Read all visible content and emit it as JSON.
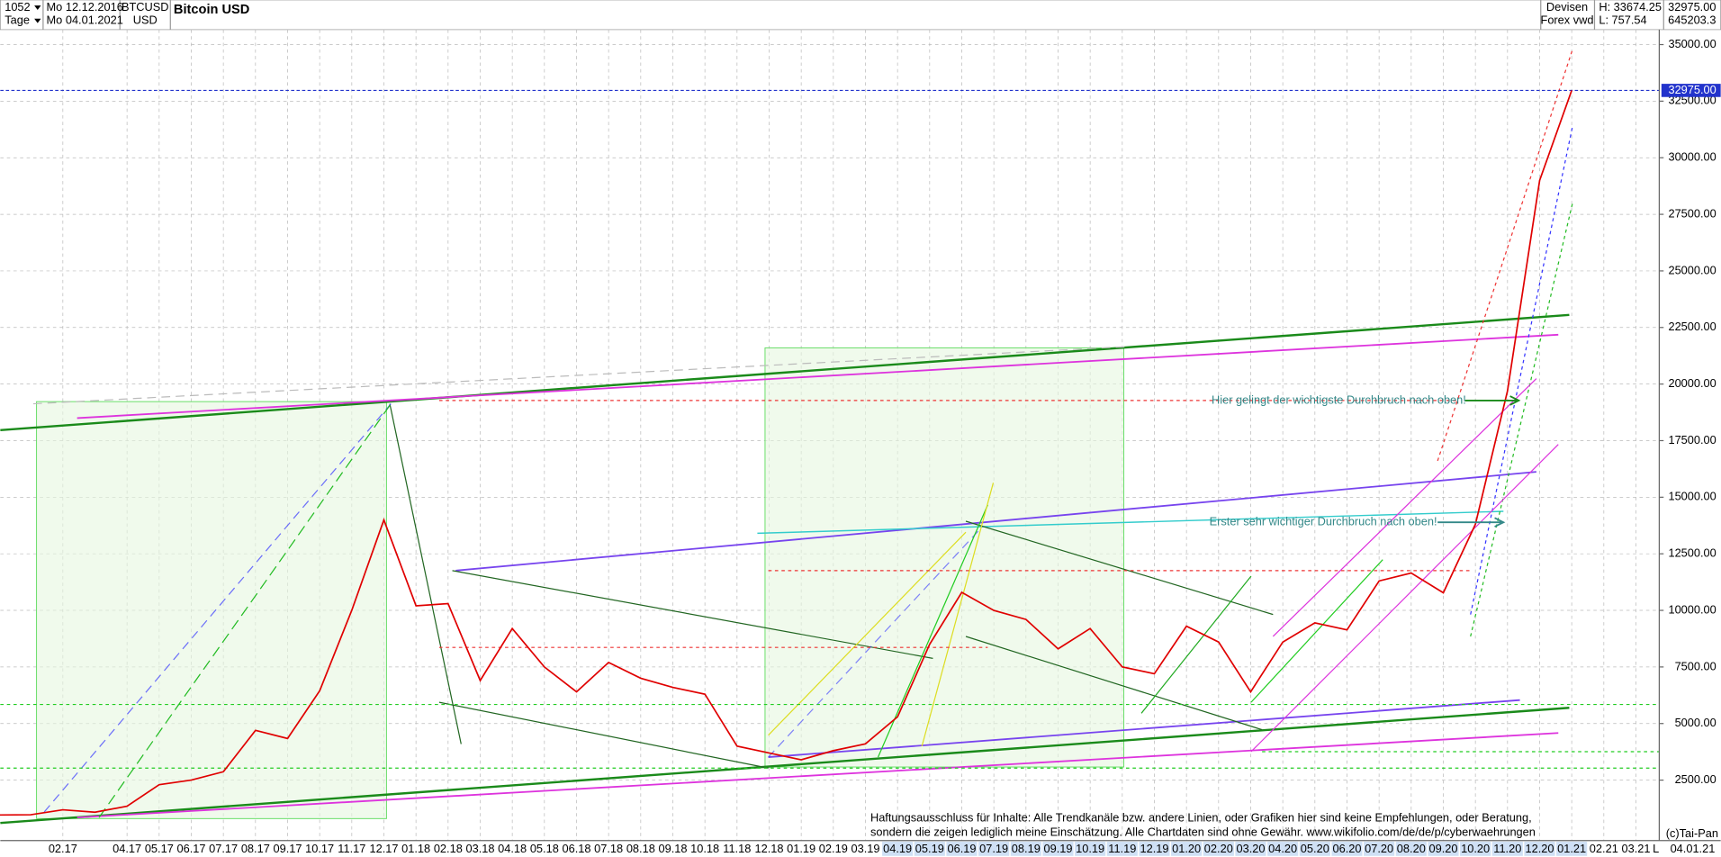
{
  "chart_data": {
    "type": "line",
    "title": "Bitcoin USD",
    "header": {
      "count": "1052",
      "period": "Tage",
      "start": "Mo 12.12.2016",
      "end": "Mo 04.01.2021",
      "symbol": "BTCUSD",
      "currency": "USD",
      "market": "Devisen",
      "source": "Forex vwd",
      "high": "H: 33674.25",
      "low": "L: 757.54",
      "last": "32975.00",
      "volume": "645203.3"
    },
    "current_price": {
      "value": 32975,
      "label": "32975.00"
    },
    "annotations": [
      "Hier gelingt der wichtigste Durchbruch nach oben!",
      "Erster sehr wichtiger Durchbruch nach oben!"
    ],
    "disclaimer": [
      "Haftungsausschluss für Inhalte: Alle Trendkanäle bzw. andere Linien, oder Grafiken hier sind keine Empfehlungen, oder Beratung,",
      "sondern die zeigen lediglich meine  Einschätzung. Alle Chartdaten sind ohne Gewähr.  www.wikifolio.com/de/de/p/cyberwaehrungen"
    ],
    "copyright": "(c)Tai-Pan",
    "footer_date": "04.01.21",
    "footer_scale": "L",
    "xticks": [
      "02.17",
      "04.17",
      "05.17",
      "06.17",
      "07.17",
      "08.17",
      "09.17",
      "10.17",
      "11.17",
      "12.17",
      "01.18",
      "02.18",
      "03.18",
      "04.18",
      "05.18",
      "06.18",
      "07.18",
      "08.18",
      "09.18",
      "10.18",
      "11.18",
      "12.18",
      "01.19",
      "02.19",
      "03.19",
      "04.19",
      "05.19",
      "06.19",
      "07.19",
      "08.19",
      "09.19",
      "10.19",
      "11.19",
      "12.19",
      "01.20",
      "02.20",
      "03.20",
      "04.20",
      "05.20",
      "06.20",
      "07.20",
      "08.20",
      "09.20",
      "10.20",
      "11.20",
      "12.20",
      "01.21",
      "02.21",
      "03.21"
    ],
    "ylim": [
      0,
      36000
    ],
    "yticks": [
      {
        "value": 2500,
        "label": "2500.00"
      },
      {
        "value": 5000,
        "label": "5000.00"
      },
      {
        "value": 7500,
        "label": "7500.00"
      },
      {
        "value": 10000,
        "label": "10000.00"
      },
      {
        "value": 12500,
        "label": "12500.00"
      },
      {
        "value": 15000,
        "label": "15000.00"
      },
      {
        "value": 17500,
        "label": "17500.00"
      },
      {
        "value": 20000,
        "label": "20000.00"
      },
      {
        "value": 22500,
        "label": "22500.00"
      },
      {
        "value": 25000,
        "label": "25000.00"
      },
      {
        "value": 27500,
        "label": "27500.00"
      },
      {
        "value": 30000,
        "label": "30000.00"
      },
      {
        "value": 32500,
        "label": "32500.00"
      },
      {
        "value": 35000,
        "label": "35000.00"
      }
    ],
    "grid": true,
    "series": [
      {
        "color": "#e00000",
        "x": [
          "12.16",
          "01.17",
          "02.17",
          "03.17",
          "04.17",
          "05.17",
          "06.17",
          "07.17",
          "08.17",
          "09.17",
          "10.17",
          "11.17",
          "12.17",
          "01.18",
          "02.18",
          "03.18",
          "04.18",
          "05.18",
          "06.18",
          "07.18",
          "08.18",
          "09.18",
          "10.18",
          "11.18",
          "12.18",
          "01.19",
          "02.19",
          "03.19",
          "04.19",
          "05.19",
          "06.19",
          "07.19",
          "08.19",
          "09.19",
          "10.19",
          "11.19",
          "12.19",
          "01.20",
          "02.20",
          "03.20",
          "04.20",
          "05.20",
          "06.20",
          "07.20",
          "08.20",
          "09.20",
          "10.20",
          "11.20",
          "12.20",
          "01.21"
        ],
        "values": [
          960,
          970,
          1190,
          1080,
          1350,
          2300,
          2500,
          2870,
          4700,
          4340,
          6450,
          10000,
          14000,
          10200,
          10300,
          6900,
          9200,
          7500,
          6400,
          7700,
          7000,
          6600,
          6300,
          4000,
          3700,
          3400,
          3800,
          4100,
          5300,
          8500,
          10800,
          10000,
          9600,
          8300,
          9200,
          7500,
          7200,
          9300,
          8600,
          6400,
          8600,
          9450,
          9140,
          11300,
          11650,
          10780,
          13800,
          19700,
          29000,
          32975
        ]
      }
    ]
  }
}
